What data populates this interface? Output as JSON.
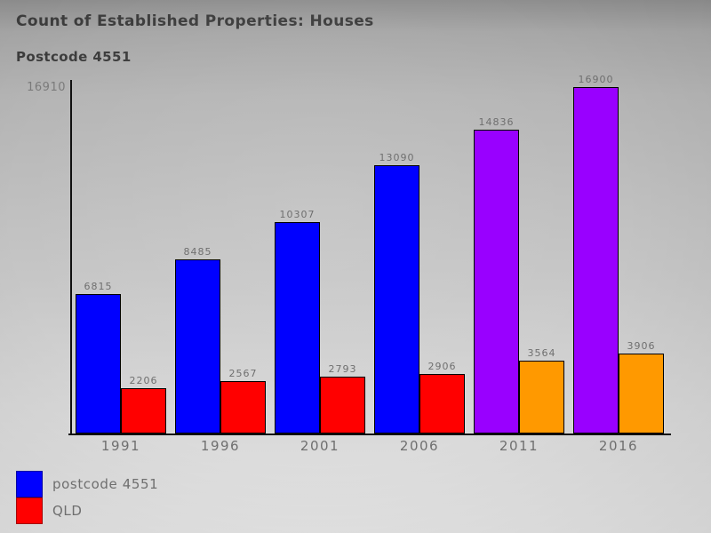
{
  "header": {
    "title": "Count of Established Properties: Houses",
    "subtitle": "Postcode 4551"
  },
  "chart_data": {
    "type": "bar",
    "title": "Count of Established Properties: Houses",
    "subtitle": "Postcode 4551",
    "categories": [
      "1991",
      "1996",
      "2001",
      "2006",
      "2011",
      "2016"
    ],
    "series": [
      {
        "name": "postcode 4551",
        "values": [
          6815,
          8485,
          10307,
          13090,
          14836,
          16900
        ],
        "bar_colors": [
          "#0000ff",
          "#0000ff",
          "#0000ff",
          "#0000ff",
          "#9900ff",
          "#9900ff"
        ],
        "legend_color": "#0000ff"
      },
      {
        "name": "QLD",
        "values": [
          2206,
          2567,
          2793,
          2906,
          3564,
          3906
        ],
        "bar_colors": [
          "#ff0000",
          "#ff0000",
          "#ff0000",
          "#ff0000",
          "#ff9900",
          "#ff9900"
        ],
        "legend_color": "#ff0000"
      }
    ],
    "ylim": [
      0,
      16910
    ],
    "y_axis_top_label": "16910",
    "xlabel": "",
    "ylabel": "",
    "grid": false,
    "data_labels": true,
    "legend_position": "bottom-left"
  },
  "legend": {
    "items": [
      {
        "label": "postcode 4551",
        "color": "#0000ff"
      },
      {
        "label": "QLD",
        "color": "#ff0000"
      }
    ]
  }
}
